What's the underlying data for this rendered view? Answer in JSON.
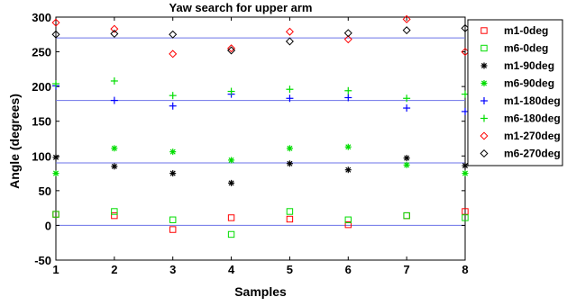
{
  "chart_data": {
    "type": "scatter",
    "title": "Yaw search for upper arm",
    "xlabel": "Samples",
    "ylabel": "Angle (degrees)",
    "xlim": [
      1,
      8
    ],
    "ylim": [
      -50,
      300
    ],
    "xticks": [
      1,
      2,
      3,
      4,
      5,
      6,
      7,
      8
    ],
    "yticks": [
      -50,
      0,
      50,
      100,
      150,
      200,
      250,
      300
    ],
    "grid": false,
    "legend_position": "right-outside-top",
    "reference_lines": [
      {
        "y": 0,
        "color": "#6b73e8"
      },
      {
        "y": 90,
        "color": "#6b73e8"
      },
      {
        "y": 180,
        "color": "#6b73e8"
      },
      {
        "y": 270,
        "color": "#6b73e8"
      }
    ],
    "x": [
      1,
      2,
      3,
      4,
      5,
      6,
      7,
      8
    ],
    "series": [
      {
        "name": "m1-0deg",
        "marker": "square",
        "color": "#ff0000",
        "values": [
          16,
          14,
          -6,
          11,
          9,
          1,
          14,
          20
        ]
      },
      {
        "name": "m6-0deg",
        "marker": "square",
        "color": "#00dd00",
        "values": [
          16,
          20,
          8,
          -13,
          20,
          8,
          14,
          11
        ]
      },
      {
        "name": "m1-90deg",
        "marker": "asterisk",
        "color": "#000000",
        "values": [
          98,
          85,
          75,
          61,
          89,
          80,
          97,
          86
        ]
      },
      {
        "name": "m6-90deg",
        "marker": "asterisk",
        "color": "#00dd00",
        "values": [
          75,
          111,
          106,
          94,
          111,
          113,
          87,
          75
        ]
      },
      {
        "name": "m1-180deg",
        "marker": "plus",
        "color": "#0000ff",
        "values": [
          201,
          180,
          172,
          189,
          183,
          184,
          169,
          164
        ]
      },
      {
        "name": "m6-180deg",
        "marker": "plus",
        "color": "#00dd00",
        "values": [
          204,
          208,
          187,
          193,
          196,
          194,
          183,
          189
        ]
      },
      {
        "name": "m1-270deg",
        "marker": "diamond",
        "color": "#ff0000",
        "values": [
          292,
          283,
          247,
          255,
          279,
          268,
          297,
          250
        ]
      },
      {
        "name": "m6-270deg",
        "marker": "diamond",
        "color": "#000000",
        "values": [
          275,
          276,
          275,
          252,
          265,
          277,
          281,
          284
        ]
      }
    ]
  }
}
